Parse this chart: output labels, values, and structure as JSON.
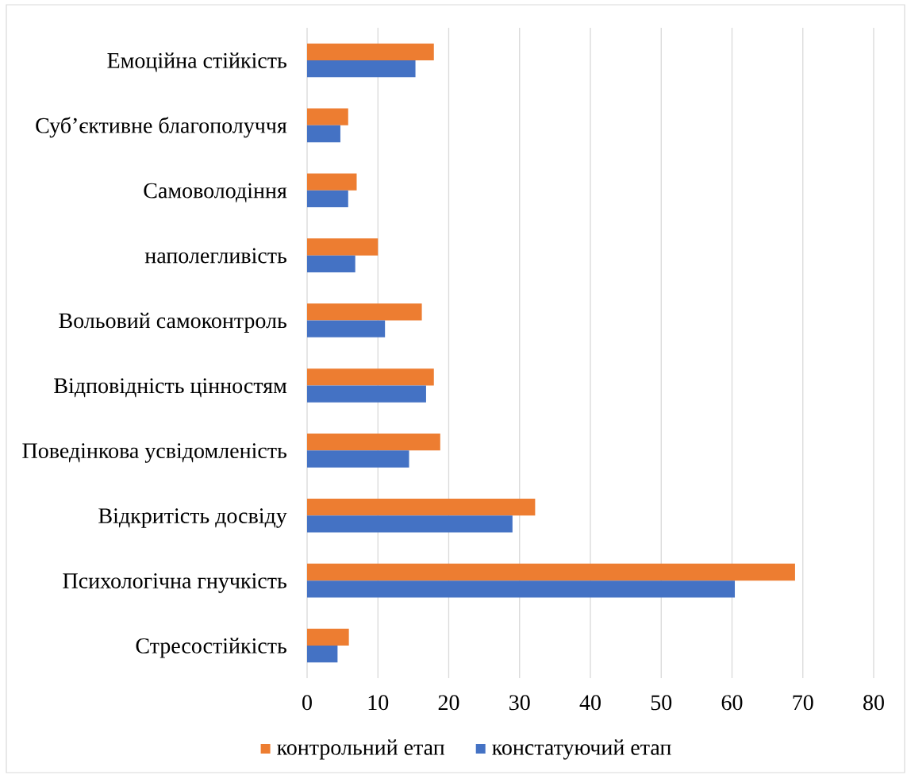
{
  "chart_data": {
    "type": "bar",
    "orientation": "horizontal",
    "categories": [
      "Емоційна стійкість",
      "Суб’єктивне благополуччя",
      "Самоволодіння",
      "наполегливість",
      "Вольовий самоконтроль",
      "Відповідність цінностям",
      "Поведінкова усвідомленість",
      "Відкритість досвіду",
      "Психологічна гнучкість",
      "Стресостійкість"
    ],
    "series": [
      {
        "name": "контрольний етап",
        "color": "#ed7d31",
        "values": [
          17.9,
          5.8,
          7.0,
          10.0,
          16.2,
          17.9,
          18.8,
          32.2,
          68.9,
          5.9
        ]
      },
      {
        "name": "констатуючий етап",
        "color": "#4472c4",
        "values": [
          15.3,
          4.7,
          5.8,
          6.8,
          11.0,
          16.8,
          14.4,
          29.0,
          60.4,
          4.3
        ]
      }
    ],
    "xlim": [
      0,
      80
    ],
    "xticks": [
      0,
      10,
      20,
      30,
      40,
      50,
      60,
      70,
      80
    ],
    "grid": "x",
    "legend": "bottom"
  }
}
